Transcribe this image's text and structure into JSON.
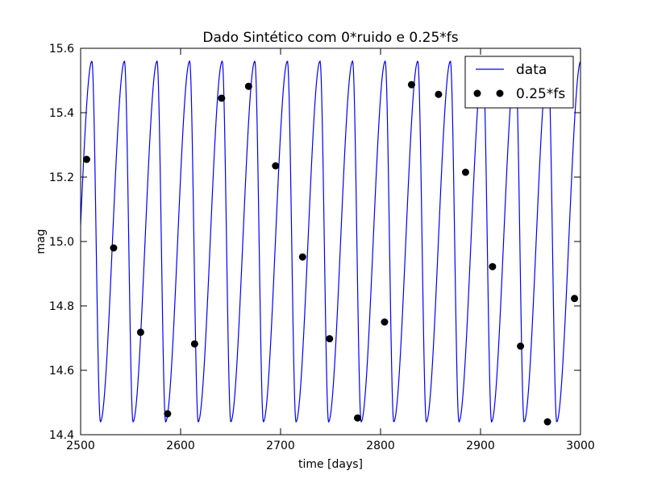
{
  "chart_data": {
    "type": "line",
    "title": "Dado Sintético com 0*ruido e 0.25*fs",
    "xlabel": "time [days]",
    "ylabel": "mag",
    "xlim": [
      2500,
      3000
    ],
    "ylim": [
      14.4,
      15.6
    ],
    "xticks": [
      2500,
      2600,
      2700,
      2800,
      2900,
      3000
    ],
    "xtick_labels": [
      "2500",
      "2600",
      "2700",
      "2800",
      "2900",
      "3000"
    ],
    "yticks": [
      14.4,
      14.6,
      14.8,
      15.0,
      15.2,
      15.4,
      15.6
    ],
    "ytick_labels": [
      "14.4",
      "14.6",
      "14.8",
      "15.0",
      "15.2",
      "15.4",
      "15.6"
    ],
    "grid": false,
    "legend_position": "top-right",
    "series": [
      {
        "name": "data",
        "style": "line",
        "color": "#0000ff",
        "curve": {
          "function": "sawtooth-like periodic light curve",
          "period": 32.6,
          "min": 14.44,
          "max": 15.56,
          "first_max_at": 2511.3,
          "rise_fraction": 0.74
        }
      },
      {
        "name": "0.25*fs",
        "style": "markers",
        "color": "#000000",
        "x": [
          2506,
          2533,
          2560,
          2587,
          2614,
          2641,
          2668,
          2695,
          2722,
          2749,
          2777,
          2804,
          2831,
          2858,
          2885,
          2912,
          2940,
          2967,
          2994
        ],
        "y": [
          15.255,
          14.98,
          14.718,
          14.465,
          14.682,
          15.445,
          15.482,
          15.235,
          14.952,
          14.698,
          14.452,
          14.75,
          15.487,
          15.457,
          15.215,
          14.922,
          14.675,
          14.44,
          14.823
        ]
      }
    ]
  }
}
